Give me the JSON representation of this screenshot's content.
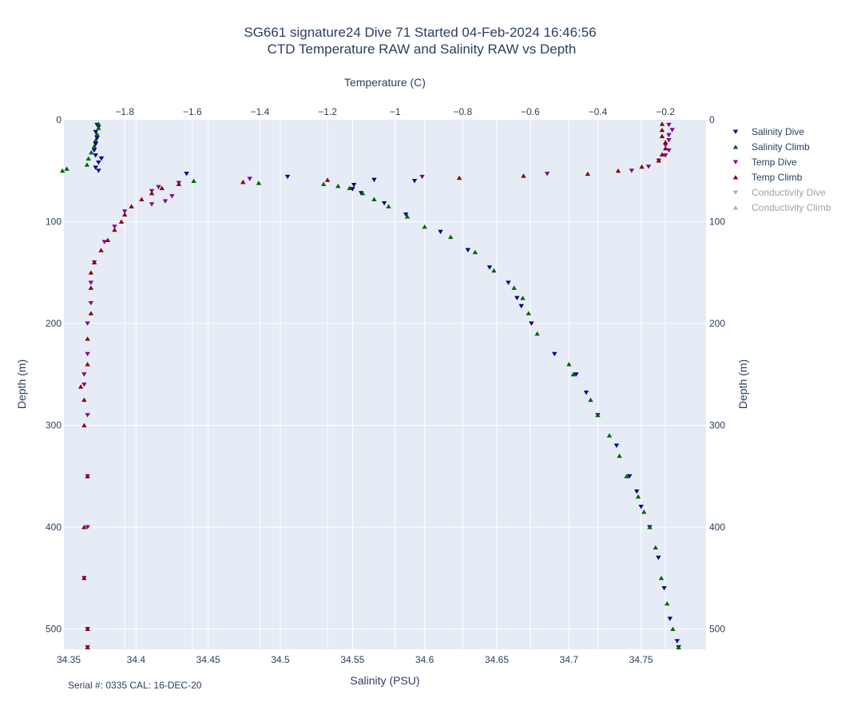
{
  "title": {
    "line1": "SG661 signature24 Dive 71 Started 04-Feb-2024 16:46:56",
    "line2": "CTD Temperature RAW and Salinity RAW vs Depth"
  },
  "footer": "Serial #: 0335  CAL: 16-DEC-20",
  "colors": {
    "plot_bg": "#e5ecf6",
    "grid": "#ffffff",
    "salinity_dive": "#00008b",
    "salinity_climb": "#006400",
    "temp_dive": "#8b008b",
    "temp_climb": "#8b0000",
    "inactive": "#b0b0b0"
  },
  "chart_data": {
    "type": "scatter",
    "title": "SG661 signature24 Dive 71 Started 04-Feb-2024 16:46:56 / CTD Temperature RAW and Salinity RAW vs Depth",
    "xlabel": "Salinity (PSU)",
    "x2label": "Temperature (C)",
    "ylabel": "Depth (m)",
    "y2label": "Depth (m)",
    "xlim": [
      34.35,
      34.795
    ],
    "x2lim": [
      -1.98,
      -0.08
    ],
    "ylim": [
      520,
      0
    ],
    "y_reversed": true,
    "grid": true,
    "legend_position": "right",
    "x_ticks": [
      "34.35",
      "34.4",
      "34.45",
      "34.5",
      "34.55",
      "34.6",
      "34.65",
      "34.7",
      "34.75"
    ],
    "x2_ticks": [
      "−1.8",
      "−1.6",
      "−1.4",
      "−1.2",
      "−1",
      "−0.8",
      "−0.6",
      "−0.4",
      "−0.2"
    ],
    "y_ticks": [
      "0",
      "100",
      "200",
      "300",
      "400",
      "500"
    ],
    "y2_ticks": [
      "0",
      "100",
      "200",
      "300",
      "400",
      "500"
    ],
    "legend": [
      {
        "name": "Salinity Dive",
        "marker": "triangle-down",
        "color": "#00008b",
        "visible": true
      },
      {
        "name": "Salinity Climb",
        "marker": "triangle-up",
        "color": "#006400",
        "visible": true
      },
      {
        "name": "Temp Dive",
        "marker": "triangle-down",
        "color": "#8b008b",
        "visible": true
      },
      {
        "name": "Temp Climb",
        "marker": "triangle-up",
        "color": "#8b0000",
        "visible": true
      },
      {
        "name": "Conductivity Dive",
        "marker": "triangle-down",
        "color": "#b0b0b0",
        "visible": false
      },
      {
        "name": "Conductivity Climb",
        "marker": "triangle-up",
        "color": "#b0b0b0",
        "visible": false
      }
    ],
    "series": [
      {
        "name": "Salinity Dive",
        "axis": "salinity",
        "marker": "triangle-down",
        "points": [
          [
            34.373,
            5
          ],
          [
            34.374,
            7
          ],
          [
            34.372,
            12
          ],
          [
            34.373,
            18
          ],
          [
            34.372,
            24
          ],
          [
            34.371,
            30
          ],
          [
            34.372,
            35
          ],
          [
            34.376,
            38
          ],
          [
            34.374,
            42
          ],
          [
            34.372,
            47
          ],
          [
            34.374,
            50
          ],
          [
            34.435,
            53
          ],
          [
            34.505,
            56
          ],
          [
            34.565,
            59
          ],
          [
            34.593,
            60
          ],
          [
            34.551,
            64
          ],
          [
            34.55,
            68
          ],
          [
            34.556,
            72
          ],
          [
            34.572,
            82
          ],
          [
            34.587,
            93
          ],
          [
            34.611,
            110
          ],
          [
            34.63,
            128
          ],
          [
            34.645,
            145
          ],
          [
            34.658,
            160
          ],
          [
            34.664,
            175
          ],
          [
            34.667,
            183
          ],
          [
            34.674,
            200
          ],
          [
            34.69,
            230
          ],
          [
            34.705,
            250
          ],
          [
            34.712,
            268
          ],
          [
            34.72,
            290
          ],
          [
            34.733,
            320
          ],
          [
            34.742,
            350
          ],
          [
            34.747,
            365
          ],
          [
            34.75,
            380
          ],
          [
            34.756,
            400
          ],
          [
            34.762,
            430
          ],
          [
            34.766,
            460
          ],
          [
            34.77,
            490
          ],
          [
            34.775,
            512
          ],
          [
            34.776,
            518
          ]
        ]
      },
      {
        "name": "Salinity Climb",
        "axis": "salinity",
        "marker": "triangle-up",
        "points": [
          [
            34.374,
            4
          ],
          [
            34.374,
            8
          ],
          [
            34.373,
            14
          ],
          [
            34.372,
            20
          ],
          [
            34.371,
            26
          ],
          [
            34.369,
            32
          ],
          [
            34.367,
            38
          ],
          [
            34.366,
            44
          ],
          [
            34.352,
            48
          ],
          [
            34.349,
            50
          ],
          [
            34.348,
            55
          ],
          [
            34.44,
            60
          ],
          [
            34.485,
            62
          ],
          [
            34.53,
            63
          ],
          [
            34.54,
            65
          ],
          [
            34.548,
            67
          ],
          [
            34.557,
            72
          ],
          [
            34.565,
            78
          ],
          [
            34.575,
            85
          ],
          [
            34.588,
            95
          ],
          [
            34.6,
            105
          ],
          [
            34.618,
            115
          ],
          [
            34.635,
            130
          ],
          [
            34.648,
            148
          ],
          [
            34.662,
            165
          ],
          [
            34.668,
            175
          ],
          [
            34.672,
            190
          ],
          [
            34.678,
            210
          ],
          [
            34.7,
            240
          ],
          [
            34.703,
            250
          ],
          [
            34.715,
            275
          ],
          [
            34.72,
            290
          ],
          [
            34.728,
            310
          ],
          [
            34.735,
            330
          ],
          [
            34.74,
            350
          ],
          [
            34.748,
            370
          ],
          [
            34.752,
            385
          ],
          [
            34.756,
            400
          ],
          [
            34.76,
            420
          ],
          [
            34.764,
            450
          ],
          [
            34.768,
            475
          ],
          [
            34.772,
            500
          ],
          [
            34.776,
            518
          ]
        ]
      },
      {
        "name": "Temp Dive",
        "axis": "temperature",
        "marker": "triangle-down",
        "points": [
          [
            -0.19,
            5
          ],
          [
            -0.18,
            10
          ],
          [
            -0.19,
            15
          ],
          [
            -0.19,
            20
          ],
          [
            -0.2,
            25
          ],
          [
            -0.19,
            30
          ],
          [
            -0.2,
            35
          ],
          [
            -0.22,
            40
          ],
          [
            -0.25,
            46
          ],
          [
            -0.3,
            50
          ],
          [
            -0.55,
            53
          ],
          [
            -0.92,
            56
          ],
          [
            -1.43,
            58
          ],
          [
            -1.64,
            62
          ],
          [
            -1.7,
            66
          ],
          [
            -1.72,
            70
          ],
          [
            -1.66,
            75
          ],
          [
            -1.68,
            80
          ],
          [
            -1.72,
            83
          ],
          [
            -1.8,
            90
          ],
          [
            -1.83,
            105
          ],
          [
            -1.86,
            120
          ],
          [
            -1.89,
            140
          ],
          [
            -1.9,
            160
          ],
          [
            -1.9,
            180
          ],
          [
            -1.91,
            200
          ],
          [
            -1.91,
            230
          ],
          [
            -1.92,
            250
          ],
          [
            -1.92,
            260
          ],
          [
            -1.91,
            290
          ],
          [
            -1.91,
            350
          ],
          [
            -1.91,
            400
          ],
          [
            -1.92,
            450
          ],
          [
            -1.91,
            500
          ],
          [
            -1.91,
            518
          ]
        ]
      },
      {
        "name": "Temp Climb",
        "axis": "temperature",
        "marker": "triangle-up",
        "points": [
          [
            -0.21,
            4
          ],
          [
            -0.21,
            10
          ],
          [
            -0.21,
            16
          ],
          [
            -0.2,
            22
          ],
          [
            -0.2,
            28
          ],
          [
            -0.21,
            34
          ],
          [
            -0.22,
            40
          ],
          [
            -0.27,
            46
          ],
          [
            -0.34,
            50
          ],
          [
            -0.43,
            53
          ],
          [
            -0.62,
            55
          ],
          [
            -0.81,
            57
          ],
          [
            -1.2,
            59
          ],
          [
            -1.45,
            61
          ],
          [
            -1.64,
            63
          ],
          [
            -1.69,
            67
          ],
          [
            -1.72,
            72
          ],
          [
            -1.75,
            78
          ],
          [
            -1.78,
            85
          ],
          [
            -1.8,
            93
          ],
          [
            -1.81,
            100
          ],
          [
            -1.83,
            108
          ],
          [
            -1.85,
            118
          ],
          [
            -1.87,
            128
          ],
          [
            -1.89,
            140
          ],
          [
            -1.9,
            150
          ],
          [
            -1.9,
            165
          ],
          [
            -1.9,
            190
          ],
          [
            -1.91,
            215
          ],
          [
            -1.91,
            240
          ],
          [
            -1.93,
            262
          ],
          [
            -1.92,
            275
          ],
          [
            -1.92,
            300
          ],
          [
            -1.91,
            350
          ],
          [
            -1.92,
            400
          ],
          [
            -1.92,
            450
          ],
          [
            -1.91,
            500
          ],
          [
            -1.91,
            518
          ]
        ]
      }
    ]
  }
}
